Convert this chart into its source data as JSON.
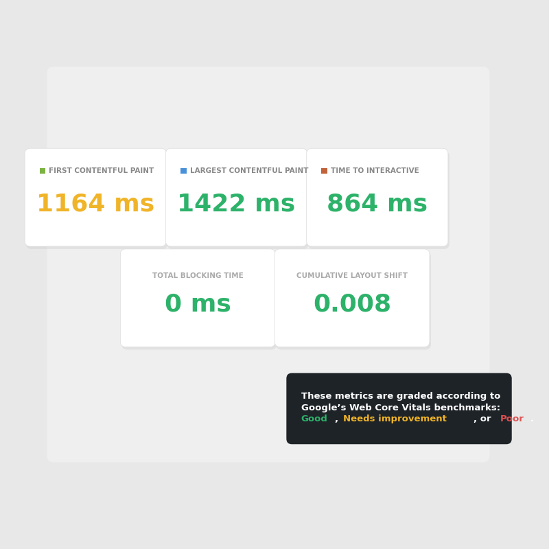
{
  "bg_color": "#e8e8e8",
  "card_bg": "#ffffff",
  "dark_bg": "#1e2328",
  "panel_bg": "#efefef",
  "metrics_row1": [
    {
      "label": "FIRST CONTENTFUL PAINT",
      "value": "1164 ms",
      "value_color": "#f0b429",
      "indicator_color": "#7cb342"
    },
    {
      "label": "LARGEST CONTENTFUL PAINT",
      "value": "1422 ms",
      "value_color": "#2db26a",
      "indicator_color": "#4a90d9"
    },
    {
      "label": "TIME TO INTERACTIVE",
      "value": "864 ms",
      "value_color": "#2db26a",
      "indicator_color": "#c0633a"
    }
  ],
  "metrics_row2": [
    {
      "label": "TOTAL BLOCKING TIME",
      "value": "0 ms",
      "value_color": "#2db26a"
    },
    {
      "label": "CUMULATIVE LAYOUT SHIFT",
      "value": "0.008",
      "value_color": "#2db26a"
    }
  ],
  "tooltip_text_line1": "These metrics are graded according to",
  "tooltip_text_line2": "Google’s Web Core Vitals benchmarks:",
  "tooltip_text_line3_parts": [
    {
      "text": "Good",
      "color": "#2db26a"
    },
    {
      "text": ", ",
      "color": "#ffffff"
    },
    {
      "text": "Needs improvement",
      "color": "#f0b429"
    },
    {
      "text": ", or ",
      "color": "#ffffff"
    },
    {
      "text": "Poor",
      "color": "#e05252"
    },
    {
      "text": ".",
      "color": "#ffffff"
    }
  ],
  "label_fontsize": 7.5,
  "value_fontsize": 26,
  "tooltip_fontsize": 10
}
